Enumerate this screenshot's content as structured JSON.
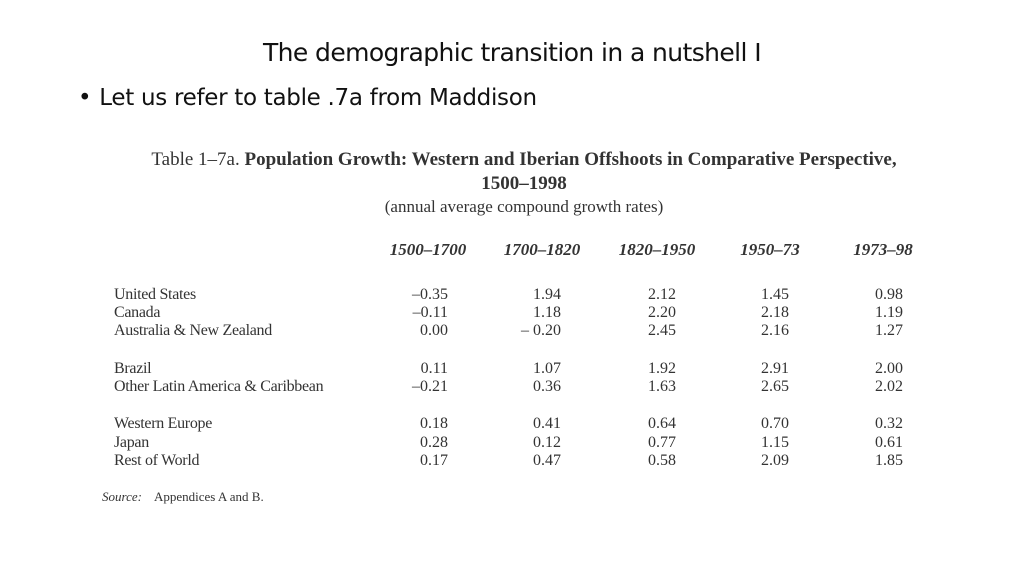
{
  "slide": {
    "title": "The demographic transition in a nutshell I",
    "bullet": "Let us refer to table .7a from Maddison"
  },
  "table": {
    "caption_number": "Table 1–7a.",
    "caption_title": "Population Growth: Western and Iberian Offshoots in Comparative Perspective,",
    "caption_years": "1500–1998",
    "caption_sub": "(annual average compound growth rates)",
    "columns": [
      "1500–1700",
      "1700–1820",
      "1820–1950",
      "1950–73",
      "1973–98"
    ],
    "rows": [
      {
        "label": "United States",
        "values": [
          "–0.35",
          "1.94",
          "2.12",
          "1.45",
          "0.98"
        ]
      },
      {
        "label": "Canada",
        "values": [
          "–0.11",
          "1.18",
          "2.20",
          "2.18",
          "1.19"
        ]
      },
      {
        "label": "Australia & New Zealand",
        "values": [
          "0.00",
          "– 0.20",
          "2.45",
          "2.16",
          "1.27"
        ]
      },
      {
        "label": "Brazil",
        "values": [
          "0.11",
          "1.07",
          "1.92",
          "2.91",
          "2.00"
        ]
      },
      {
        "label": "Other Latin America & Caribbean",
        "values": [
          "–0.21",
          "0.36",
          "1.63",
          "2.65",
          "2.02"
        ]
      },
      {
        "label": "Western Europe",
        "values": [
          "0.18",
          "0.41",
          "0.64",
          "0.70",
          "0.32"
        ]
      },
      {
        "label": "Japan",
        "values": [
          "0.28",
          "0.12",
          "0.77",
          "1.15",
          "0.61"
        ]
      },
      {
        "label": "Rest of World",
        "values": [
          "0.17",
          "0.47",
          "0.58",
          "2.09",
          "1.85"
        ]
      }
    ],
    "source_label": "Source:",
    "source_text": "Appendices A and B."
  }
}
